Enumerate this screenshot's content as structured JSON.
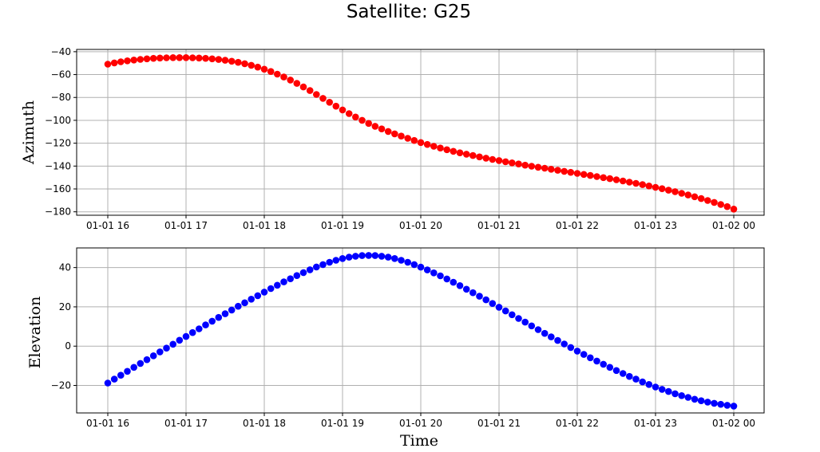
{
  "figure": {
    "title": "Satellite: G25"
  },
  "chart_data": [
    {
      "type": "scatter",
      "xlabel": "",
      "ylabel": "Azimuth",
      "x_ticks": [
        "01-01 16",
        "01-01 17",
        "01-01 18",
        "01-01 19",
        "01-01 20",
        "01-01 21",
        "01-01 22",
        "01-01 23",
        "01-02 00"
      ],
      "x_range": [
        "01-01 16:00",
        "01-02 00:00"
      ],
      "y_ticks": [
        -40,
        -60,
        -80,
        -100,
        -120,
        -140,
        -160,
        -180
      ],
      "ylim": [
        -183,
        -38
      ],
      "grid": true,
      "color": "#ff0000",
      "x_start": "01-01 16:00",
      "x_step_minutes": 5,
      "series": [
        {
          "values": [
            -50.9,
            -49.8,
            -48.8,
            -48.0,
            -47.3,
            -46.7,
            -46.2,
            -45.8,
            -45.5,
            -45.3,
            -45.2,
            -45.2,
            -45.2,
            -45.3,
            -45.5,
            -45.8,
            -46.2,
            -46.8,
            -47.5,
            -48.3,
            -49.3,
            -50.5,
            -51.9,
            -53.5,
            -55.3,
            -57.3,
            -59.6,
            -62.1,
            -64.8,
            -67.7,
            -70.8,
            -74.0,
            -77.4,
            -80.8,
            -84.2,
            -87.6,
            -90.9,
            -94.1,
            -97.1,
            -100.0,
            -102.7,
            -105.2,
            -107.5,
            -109.7,
            -111.8,
            -113.8,
            -115.7,
            -117.6,
            -119.4,
            -121.1,
            -122.7,
            -124.2,
            -125.7,
            -127.1,
            -128.4,
            -129.6,
            -130.8,
            -132.0,
            -133.1,
            -134.2,
            -135.2,
            -136.2,
            -137.2,
            -138.2,
            -139.2,
            -140.1,
            -141.0,
            -141.9,
            -142.8,
            -143.7,
            -144.6,
            -145.5,
            -146.4,
            -147.3,
            -148.2,
            -149.2,
            -150.1,
            -151.0,
            -152.0,
            -153.0,
            -154.1,
            -155.1,
            -156.2,
            -157.4,
            -158.6,
            -159.8,
            -161.1,
            -162.4,
            -163.8,
            -165.3,
            -166.8,
            -168.4,
            -170.1,
            -171.8,
            -173.6,
            -175.5,
            -177.6
          ]
        }
      ]
    },
    {
      "type": "scatter",
      "xlabel": "Time",
      "ylabel": "Elevation",
      "x_ticks": [
        "01-01 16",
        "01-01 17",
        "01-01 18",
        "01-01 19",
        "01-01 20",
        "01-01 21",
        "01-01 22",
        "01-01 23",
        "01-02 00"
      ],
      "x_range": [
        "01-01 16:00",
        "01-02 00:00"
      ],
      "y_ticks": [
        40,
        20,
        0,
        -20
      ],
      "ylim": [
        -34,
        50
      ],
      "grid": true,
      "color": "#0000ff",
      "x_start": "01-01 16:00",
      "x_step_minutes": 5,
      "series": [
        {
          "values": [
            -18.8,
            -16.8,
            -14.8,
            -12.8,
            -10.8,
            -8.8,
            -6.9,
            -4.9,
            -2.9,
            -1.0,
            1.0,
            3.0,
            4.9,
            6.9,
            8.8,
            10.8,
            12.7,
            14.6,
            16.5,
            18.4,
            20.3,
            22.1,
            23.9,
            25.7,
            27.5,
            29.3,
            31.0,
            32.7,
            34.3,
            35.9,
            37.4,
            38.9,
            40.3,
            41.5,
            42.7,
            43.7,
            44.6,
            45.3,
            45.8,
            46.1,
            46.2,
            46.1,
            45.8,
            45.3,
            44.6,
            43.7,
            42.7,
            41.5,
            40.2,
            38.8,
            37.3,
            35.8,
            34.2,
            32.5,
            30.8,
            29.0,
            27.2,
            25.4,
            23.6,
            21.7,
            19.8,
            17.9,
            16.0,
            14.1,
            12.2,
            10.3,
            8.4,
            6.5,
            4.7,
            2.9,
            1.1,
            -0.7,
            -2.5,
            -4.2,
            -5.9,
            -7.6,
            -9.2,
            -10.8,
            -12.4,
            -13.9,
            -15.4,
            -16.8,
            -18.2,
            -19.5,
            -20.8,
            -22.0,
            -23.1,
            -24.2,
            -25.2,
            -26.1,
            -27.0,
            -27.8,
            -28.5,
            -29.1,
            -29.6,
            -30.1,
            -30.5
          ]
        }
      ]
    }
  ]
}
